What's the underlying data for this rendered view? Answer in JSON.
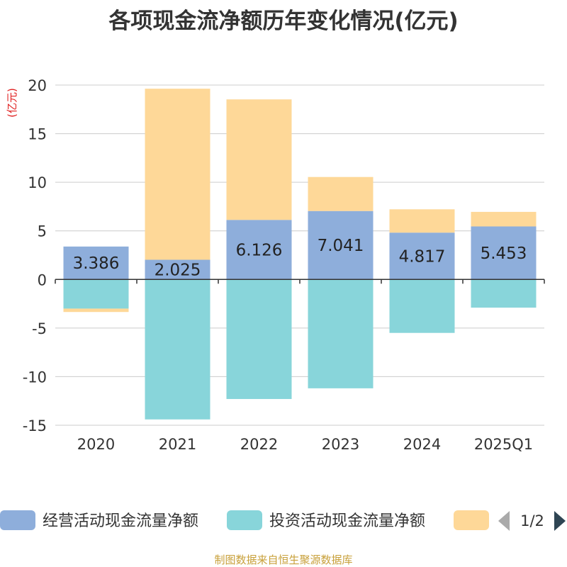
{
  "chart_data": {
    "type": "bar",
    "stacked": true,
    "title": "各项现金流净额历年变化情况(亿元)",
    "y_unit": "(亿元)",
    "categories": [
      "2020",
      "2021",
      "2022",
      "2023",
      "2024",
      "2025Q1"
    ],
    "ylim": [
      -15,
      20
    ],
    "yticks": [
      -15,
      -10,
      -5,
      0,
      5,
      10,
      15,
      20
    ],
    "grid": true,
    "series": [
      {
        "name": "经营活动现金流量净额",
        "color": "#8eaedb",
        "values": [
          3.386,
          2.025,
          6.126,
          7.041,
          4.817,
          5.453
        ],
        "labels": [
          "3.386",
          "2.025",
          "6.126",
          "7.041",
          "4.817",
          "5.453"
        ]
      },
      {
        "name": "投资活动现金流量净额",
        "color": "#88d5da",
        "values": [
          -3.0,
          -14.4,
          -12.3,
          -11.2,
          -5.5,
          -2.9
        ]
      },
      {
        "name": "",
        "color": "#fed898",
        "values": [
          -0.35,
          17.6,
          12.4,
          3.5,
          2.4,
          1.5
        ]
      }
    ],
    "legend": {
      "position": "bottom",
      "page": "1/2"
    }
  },
  "source": "制图数据来自恒生聚源数据库"
}
